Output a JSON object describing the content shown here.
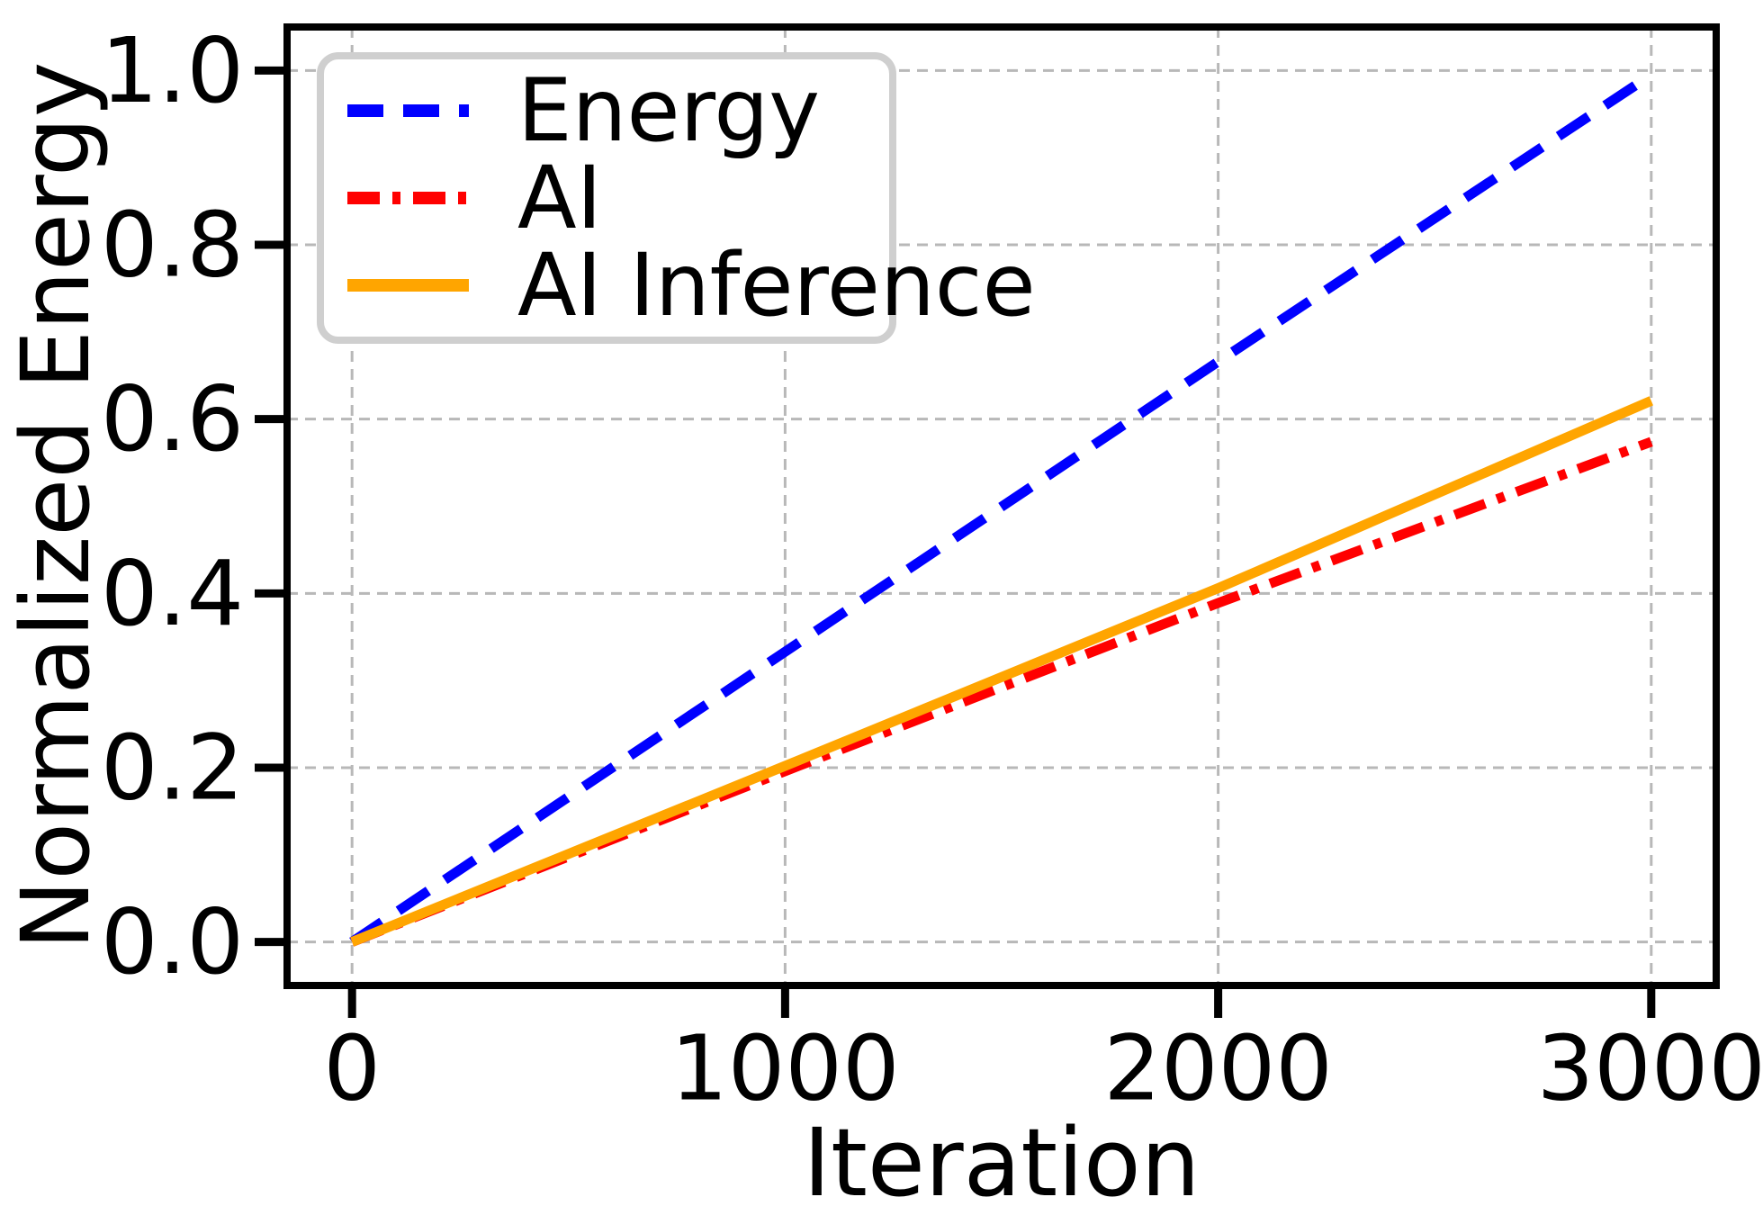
{
  "figure": {
    "background": "#ffffff",
    "spine_color": "#000000",
    "grid_color": "#b8b8b8",
    "legend_border_color": "#cfcfcf"
  },
  "chart_data": {
    "type": "line",
    "title": "",
    "xlabel": "Iteration",
    "ylabel": "Normalized Energy",
    "xlim": [
      -150,
      3150
    ],
    "ylim": [
      -0.05,
      1.05
    ],
    "grid": true,
    "legend_position": "upper left",
    "xticks": [
      0,
      1000,
      2000,
      3000
    ],
    "xtick_labels": [
      "0",
      "1000",
      "2000",
      "3000"
    ],
    "yticks": [
      0.0,
      0.2,
      0.4,
      0.6,
      0.8,
      1.0
    ],
    "ytick_labels": [
      "0.0",
      "0.2",
      "0.4",
      "0.6",
      "0.8",
      "1.0"
    ],
    "x": [
      0,
      1000,
      2000,
      3000
    ],
    "series": [
      {
        "name": "Energy",
        "color": "#0000ff",
        "style": "dashed",
        "values": [
          0.0,
          0.333,
          0.666,
          0.995
        ]
      },
      {
        "name": "AI",
        "color": "#ff0000",
        "style": "dashdot",
        "values": [
          0.0,
          0.196,
          0.389,
          0.574
        ]
      },
      {
        "name": "AI Inference",
        "color": "#ffa500",
        "style": "solid",
        "values": [
          0.0,
          0.202,
          0.406,
          0.621
        ]
      }
    ]
  }
}
